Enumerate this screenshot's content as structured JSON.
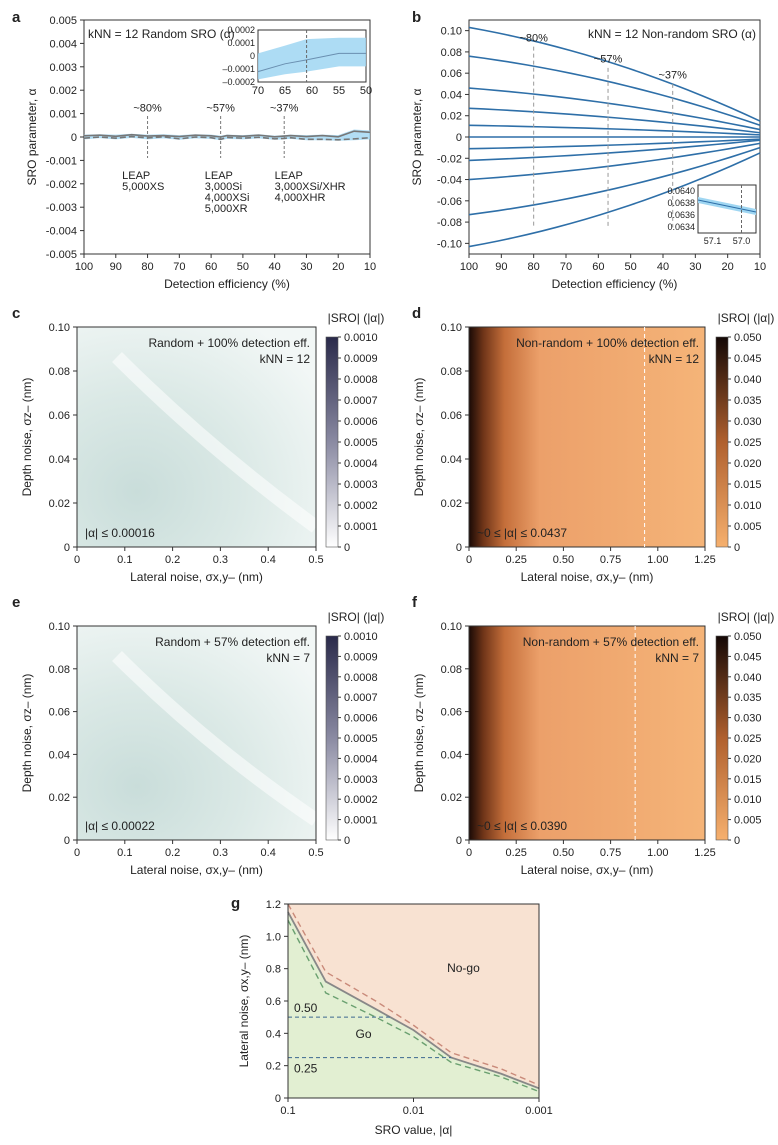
{
  "chart_data": [
    {
      "id": "a",
      "type": "line",
      "panel_label": "a",
      "title": "kNN = 12 Random SRO (α)",
      "xlabel": "Detection efficiency (%)",
      "ylabel": "SRO parameter, α",
      "xlim": [
        100,
        10
      ],
      "ylim": [
        -0.005,
        0.005
      ],
      "x_ticks": [
        "100",
        "90",
        "80",
        "70",
        "60",
        "50",
        "40",
        "30",
        "20",
        "10"
      ],
      "y_ticks": [
        "0.005",
        "0.004",
        "0.003",
        "0.002",
        "0.001",
        "0",
        "-0.001",
        "-0.002",
        "-0.003",
        "-0.004",
        "-0.005"
      ],
      "x": [
        100,
        95,
        90,
        85,
        80,
        75,
        70,
        65,
        60,
        57,
        55,
        50,
        45,
        40,
        37,
        35,
        30,
        25,
        20,
        15,
        10
      ],
      "series": [
        {
          "values": [
            5e-05,
            8e-05,
            3e-05,
            0.0001,
            4e-05,
            6e-05,
            2e-05,
            8e-05,
            5e-05,
            0.0,
            6e-05,
            3e-05,
            8e-05,
            1e-05,
            4e-05,
            6e-05,
            2e-05,
            6e-05,
            1e-05,
            0.00025,
            0.0002
          ]
        },
        {
          "values": [
            -5e-05,
            0.0,
            -5e-05,
            2e-05,
            -4e-05,
            1e-05,
            -8e-05,
            0.0,
            -3e-05,
            -0.0001,
            -2e-05,
            -5e-05,
            -1e-05,
            -8e-05,
            -6e-05,
            -3e-05,
            -0.0001,
            -0.0001,
            -0.00012,
            -8e-05,
            -3e-05
          ]
        }
      ],
      "band_upper": [
        0.0001,
        0.00012,
        0.0001,
        0.00014,
        0.0001,
        0.00012,
        8e-05,
        0.00012,
        0.0001,
        6e-05,
        0.0001,
        8e-05,
        0.00012,
        6e-05,
        8e-05,
        0.0001,
        8e-05,
        0.0001,
        8e-05,
        0.00032,
        0.00028
      ],
      "band_lower": [
        -0.0001,
        -5e-05,
        -0.0001,
        -4e-05,
        -0.0001,
        -6e-05,
        -0.00012,
        -6e-05,
        -8e-05,
        -0.00014,
        -8e-05,
        -0.0001,
        -6e-05,
        -0.00012,
        -0.0001,
        -8e-05,
        -0.00014,
        -0.00014,
        -0.00016,
        -0.00014,
        -0.0001
      ],
      "markers": [
        {
          "x": 80,
          "label": "~80%"
        },
        {
          "x": 57,
          "label": "~57%"
        },
        {
          "x": 37,
          "label": "~37%"
        }
      ],
      "instrument_labels": [
        {
          "x": 88,
          "lines": [
            "LEAP",
            "5,000XS"
          ]
        },
        {
          "x": 62,
          "lines": [
            "LEAP",
            "3,000Si",
            "4,000XSi",
            "5,000XR"
          ]
        },
        {
          "x": 40,
          "lines": [
            "LEAP",
            "3,000XSi/XHR",
            "4,000XHR"
          ]
        }
      ],
      "inset": {
        "xlim": [
          70,
          50
        ],
        "ylim": [
          -0.0002,
          0.0002
        ],
        "x_ticks": [
          "70",
          "65",
          "60",
          "55",
          "50"
        ],
        "y_ticks": [
          "0.0002",
          "0.0001",
          "0",
          "–0.0001",
          "–0.0002"
        ],
        "x": [
          70,
          65,
          61,
          55,
          50
        ],
        "mean": [
          -0.00012,
          -6e-05,
          -3e-05,
          2e-05,
          2e-05
        ],
        "upper": [
          2e-05,
          8e-05,
          0.00013,
          0.00014,
          0.00014
        ],
        "lower": [
          -0.00018,
          -0.00014,
          -0.00012,
          -8e-05,
          -8e-05
        ],
        "marker_x": 61
      }
    },
    {
      "id": "b",
      "type": "line",
      "panel_label": "b",
      "title": "kNN = 12 Non-random SRO (α)",
      "xlabel": "Detection efficiency (%)",
      "ylabel": "SRO parameter, α",
      "xlim": [
        100,
        10
      ],
      "ylim": [
        -0.11,
        0.11
      ],
      "x_ticks": [
        "100",
        "90",
        "80",
        "70",
        "60",
        "50",
        "40",
        "30",
        "20",
        "10"
      ],
      "y_ticks": [
        "0.10",
        "0.08",
        "0.06",
        "0.04",
        "0.02",
        "0",
        "-0.02",
        "-0.04",
        "-0.06",
        "-0.08",
        "-0.10"
      ],
      "series": [
        {
          "start": 0.103,
          "end": 0.015
        },
        {
          "start": 0.076,
          "end": 0.011
        },
        {
          "start": 0.046,
          "end": 0.007
        },
        {
          "start": 0.027,
          "end": 0.004
        },
        {
          "start": 0.011,
          "end": 0.002
        },
        {
          "start": 0.0,
          "end": 0.0
        },
        {
          "start": -0.011,
          "end": -0.002
        },
        {
          "start": -0.022,
          "end": -0.003
        },
        {
          "start": -0.04,
          "end": -0.006
        },
        {
          "start": -0.073,
          "end": -0.01
        },
        {
          "start": -0.103,
          "end": -0.015
        }
      ],
      "markers": [
        {
          "x": 80,
          "label": "~80%"
        },
        {
          "x": 57,
          "label": "~57%"
        },
        {
          "x": 37,
          "label": "~37%"
        }
      ],
      "inset": {
        "xlim": [
          57.15,
          56.95
        ],
        "ylim": [
          0.0633,
          0.0641
        ],
        "x_ticks": [
          "57.1",
          "57.0"
        ],
        "y_ticks": [
          "0.0640",
          "0.0638",
          "0.0636",
          "0.0634"
        ],
        "x": [
          57.15,
          56.95
        ],
        "mean": [
          0.06385,
          0.06365
        ],
        "upper": [
          0.0639,
          0.0637
        ],
        "lower": [
          0.0638,
          0.0636
        ],
        "marker_x": 57.0
      }
    },
    {
      "id": "c",
      "type": "heatmap",
      "panel_label": "c",
      "annotation_lines": [
        "Random + 100% detection eff.",
        "kNN = 12"
      ],
      "xlabel": "Lateral noise, σx,y– (nm)",
      "ylabel": "Depth noise, σz– (nm)",
      "colorbar_title": "|SRO| (|α|)",
      "colorbar_ticks": [
        "0.0010",
        "0.0009",
        "0.0008",
        "0.0007",
        "0.0006",
        "0.0005",
        "0.0004",
        "0.0003",
        "0.0002",
        "0.0001",
        "0"
      ],
      "x_ticks": [
        "0",
        "0.1",
        "0.2",
        "0.3",
        "0.4",
        "0.5"
      ],
      "y_ticks": [
        "0.10",
        "0.08",
        "0.06",
        "0.04",
        "0.02",
        "0"
      ],
      "xlim": [
        0,
        0.5
      ],
      "ylim": [
        0,
        0.1
      ],
      "range_label": "|α| ≤ 0.00016",
      "colormap": [
        "#ffffff",
        "#2a2a4a"
      ],
      "dashed_x": null
    },
    {
      "id": "d",
      "type": "heatmap",
      "panel_label": "d",
      "annotation_lines": [
        "Non-random + 100% detection eff.",
        "kNN = 12"
      ],
      "xlabel": "Lateral noise, σx,y– (nm)",
      "ylabel": "Depth noise, σz– (nm)",
      "colorbar_title": "|SRO| (|α|)",
      "colorbar_ticks": [
        "0.050",
        "0.045",
        "0.040",
        "0.035",
        "0.030",
        "0.025",
        "0.020",
        "0.015",
        "0.010",
        "0.005",
        "0"
      ],
      "x_ticks": [
        "0",
        "0.25",
        "0.50",
        "0.75",
        "1.00",
        "1.25"
      ],
      "y_ticks": [
        "0.10",
        "0.08",
        "0.06",
        "0.04",
        "0.02",
        "0"
      ],
      "xlim": [
        0,
        1.25
      ],
      "ylim": [
        0,
        0.1
      ],
      "range_label": "~0 ≤ |α| ≤  0.0437",
      "colormap": [
        "#f6b06e",
        "#140806"
      ],
      "dashed_x": 0.93
    },
    {
      "id": "e",
      "type": "heatmap",
      "panel_label": "e",
      "annotation_lines": [
        "Random + 57% detection eff.",
        "kNN = 7"
      ],
      "xlabel": "Lateral noise, σx,y– (nm)",
      "ylabel": "Depth noise, σz– (nm)",
      "colorbar_title": "|SRO| (|α|)",
      "colorbar_ticks": [
        "0.0010",
        "0.0009",
        "0.0008",
        "0.0007",
        "0.0006",
        "0.0005",
        "0.0004",
        "0.0003",
        "0.0002",
        "0.0001",
        "0"
      ],
      "x_ticks": [
        "0",
        "0.1",
        "0.2",
        "0.3",
        "0.4",
        "0.5"
      ],
      "y_ticks": [
        "0.10",
        "0.08",
        "0.06",
        "0.04",
        "0.02",
        "0"
      ],
      "xlim": [
        0,
        0.5
      ],
      "ylim": [
        0,
        0.1
      ],
      "range_label": "|α| ≤  0.00022",
      "colormap": [
        "#ffffff",
        "#2a2a4a"
      ],
      "dashed_x": null
    },
    {
      "id": "f",
      "type": "heatmap",
      "panel_label": "f",
      "annotation_lines": [
        "Non-random + 57% detection eff.",
        "kNN = 7"
      ],
      "xlabel": "Lateral noise, σx,y– (nm)",
      "ylabel": "Depth noise, σz– (nm)",
      "colorbar_title": "|SRO| (|α|)",
      "colorbar_ticks": [
        "0.050",
        "0.045",
        "0.040",
        "0.035",
        "0.030",
        "0.025",
        "0.020",
        "0.015",
        "0.010",
        "0.005",
        "0"
      ],
      "x_ticks": [
        "0",
        "0.25",
        "0.50",
        "0.75",
        "1.00",
        "1.25"
      ],
      "y_ticks": [
        "0.10",
        "0.08",
        "0.06",
        "0.04",
        "0.02",
        "0"
      ],
      "xlim": [
        0,
        1.25
      ],
      "ylim": [
        0,
        0.1
      ],
      "range_label": "~0 ≤ |α| ≤ 0.0390",
      "colormap": [
        "#f6b06e",
        "#140806"
      ],
      "dashed_x": 0.88
    },
    {
      "id": "g",
      "type": "area",
      "panel_label": "g",
      "xlabel": "SRO value, |α|",
      "ylabel": "Lateral noise, σx,y– (nm)",
      "x_scale": "log",
      "xlim": [
        0.1,
        0.001
      ],
      "ylim": [
        0,
        1.2
      ],
      "x_ticks": [
        {
          "v": 0.1,
          "label": "0.1"
        },
        {
          "v": 0.01,
          "label": "0.01"
        },
        {
          "v": 0.001,
          "label": "0.001"
        }
      ],
      "y_ticks": [
        "1.2",
        "1.0",
        "0.8",
        "0.6",
        "0.4",
        "0.2",
        "0"
      ],
      "boundary": {
        "x": [
          0.1,
          0.05,
          0.02,
          0.01,
          0.005,
          0.002,
          0.001
        ],
        "y": [
          1.15,
          0.72,
          0.55,
          0.42,
          0.25,
          0.15,
          0.06
        ]
      },
      "upper_dashed": {
        "x": [
          0.1,
          0.05,
          0.02,
          0.01,
          0.005,
          0.002,
          0.001
        ],
        "y": [
          1.2,
          0.78,
          0.6,
          0.45,
          0.28,
          0.18,
          0.08
        ]
      },
      "lower_dashed": {
        "x": [
          0.1,
          0.05,
          0.02,
          0.01,
          0.005,
          0.002,
          0.001
        ],
        "y": [
          1.1,
          0.65,
          0.5,
          0.38,
          0.22,
          0.13,
          0.04
        ]
      },
      "thresholds": [
        {
          "y": 0.5,
          "label": "0.50"
        },
        {
          "y": 0.25,
          "label": "0.25"
        }
      ],
      "regions": {
        "go": "Go",
        "nogo": "No-go"
      },
      "colors": {
        "go": "#e2efd2",
        "nogo": "#f8e2d2"
      }
    }
  ]
}
